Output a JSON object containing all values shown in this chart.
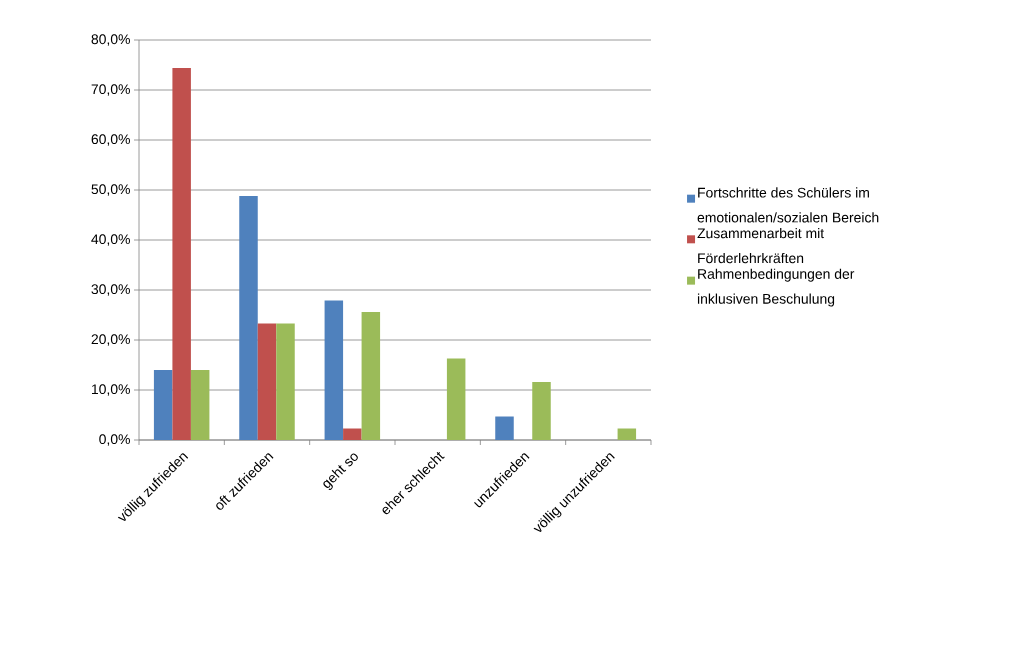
{
  "chart_data": {
    "type": "bar",
    "categories": [
      "völlig zufrieden",
      "oft zufrieden",
      "geht so",
      "eher schlecht",
      "unzufrieden",
      "völlig unzufrieden"
    ],
    "series": [
      {
        "name": "Fortschritte des Schülers im emotionalen/sozialen Bereich",
        "color": "#4f81bd",
        "values": [
          14.0,
          48.8,
          27.9,
          0,
          4.7,
          0
        ]
      },
      {
        "name": "Zusammenarbeit mit Förderlehrkräften",
        "color": "#c0504d",
        "values": [
          74.4,
          23.3,
          2.3,
          0,
          0,
          0
        ]
      },
      {
        "name": "Rahmenbedingungen  der inklusiven Beschulung",
        "color": "#9bbb59",
        "values": [
          14.0,
          23.3,
          25.6,
          16.3,
          11.6,
          2.3
        ]
      }
    ],
    "ylim": [
      0,
      80
    ],
    "yticks": [
      {
        "value": 0,
        "label": "0,0%"
      },
      {
        "value": 10,
        "label": "10,0%"
      },
      {
        "value": 20,
        "label": "20,0%"
      },
      {
        "value": 30,
        "label": "30,0%"
      },
      {
        "value": 40,
        "label": "40,0%"
      },
      {
        "value": 50,
        "label": "50,0%"
      },
      {
        "value": 60,
        "label": "60,0%"
      },
      {
        "value": 70,
        "label": "70,0%"
      },
      {
        "value": 80,
        "label": "80,0%"
      }
    ],
    "grid": "y",
    "legend": "right"
  }
}
